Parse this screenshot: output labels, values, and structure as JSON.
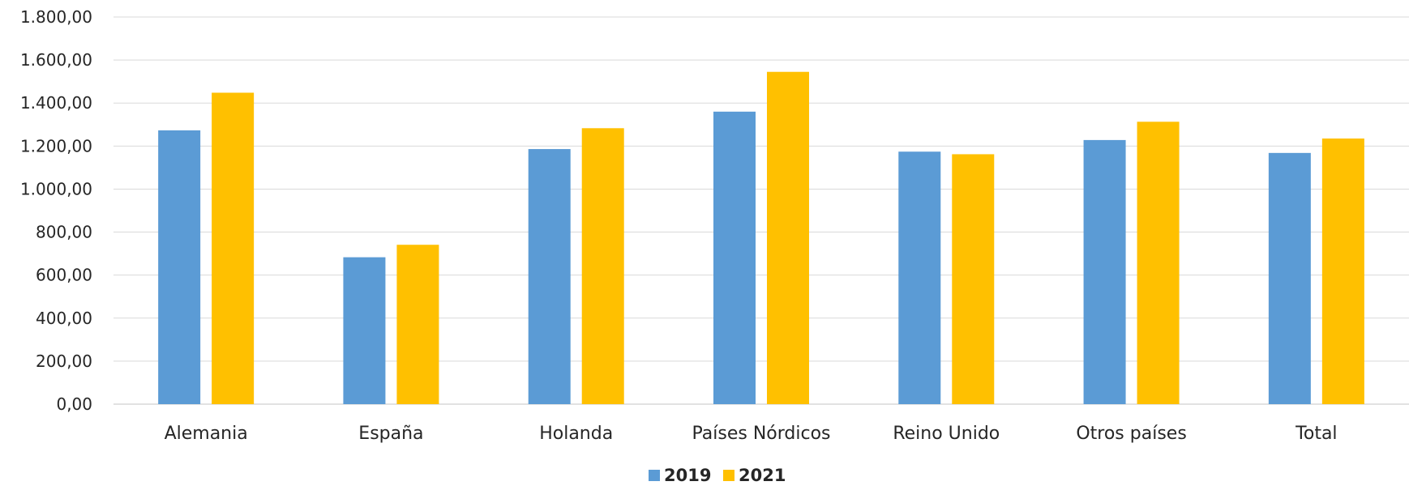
{
  "chart_data": {
    "type": "bar",
    "categories": [
      "Alemania",
      "España",
      "Holanda",
      "Países Nórdicos",
      "Reino Unido",
      "Otros países",
      "Total"
    ],
    "series": [
      {
        "name": "2019",
        "values": [
          1273,
          683,
          1186,
          1360,
          1174,
          1228,
          1168
        ],
        "color": "#5b9bd5"
      },
      {
        "name": "2021",
        "values": [
          1448,
          741,
          1283,
          1545,
          1162,
          1313,
          1235
        ],
        "color": "#ffc000"
      }
    ],
    "y_ticks": [
      "0,00",
      "200,00",
      "400,00",
      "600,00",
      "800,00",
      "1.000,00",
      "1.200,00",
      "1.400,00",
      "1.600,00",
      "1.800,00"
    ],
    "ylim": [
      0,
      1800
    ],
    "grid": true,
    "legend_position": "bottom"
  }
}
